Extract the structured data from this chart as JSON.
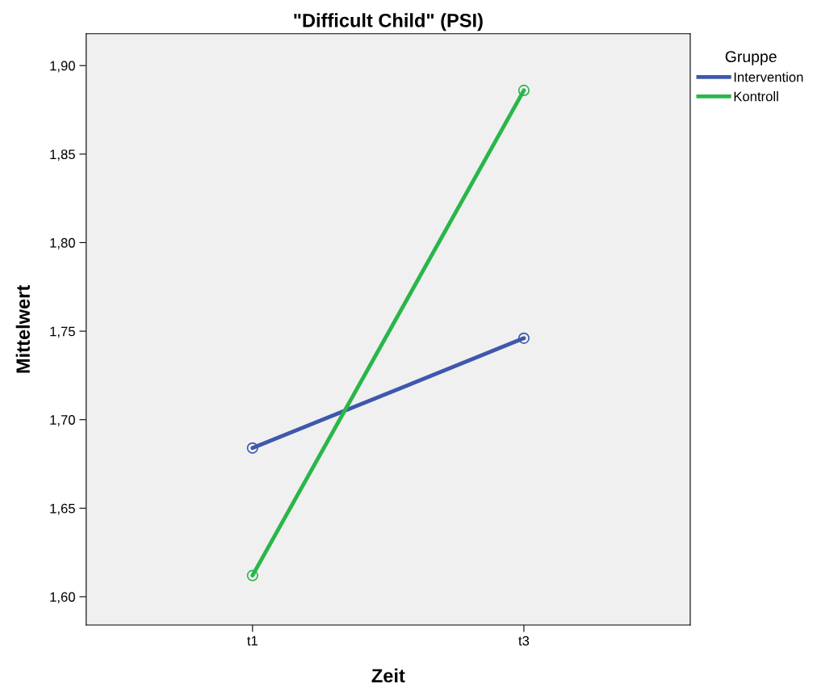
{
  "chart_data": {
    "type": "line",
    "title": "\"Difficult Child\" (PSI)",
    "xlabel": "Zeit",
    "ylabel": "Mittelwert",
    "legend_title": "Gruppe",
    "categories": [
      "t1",
      "t3"
    ],
    "series": [
      {
        "name": "Intervention",
        "color": "#3e58ac",
        "values": [
          1.684,
          1.746
        ]
      },
      {
        "name": "Kontroll",
        "color": "#2ab64a",
        "values": [
          1.612,
          1.886
        ]
      }
    ],
    "ylim": [
      1.584,
      1.918
    ],
    "yticks": [
      {
        "value": 1.6,
        "label": "1,60"
      },
      {
        "value": 1.65,
        "label": "1,65"
      },
      {
        "value": 1.7,
        "label": "1,70"
      },
      {
        "value": 1.75,
        "label": "1,75"
      },
      {
        "value": 1.8,
        "label": "1,80"
      },
      {
        "value": 1.85,
        "label": "1,85"
      },
      {
        "value": 1.9,
        "label": "1,90"
      }
    ],
    "marker": "circle",
    "line_style": "solid",
    "grid": false,
    "legend": "top right"
  }
}
